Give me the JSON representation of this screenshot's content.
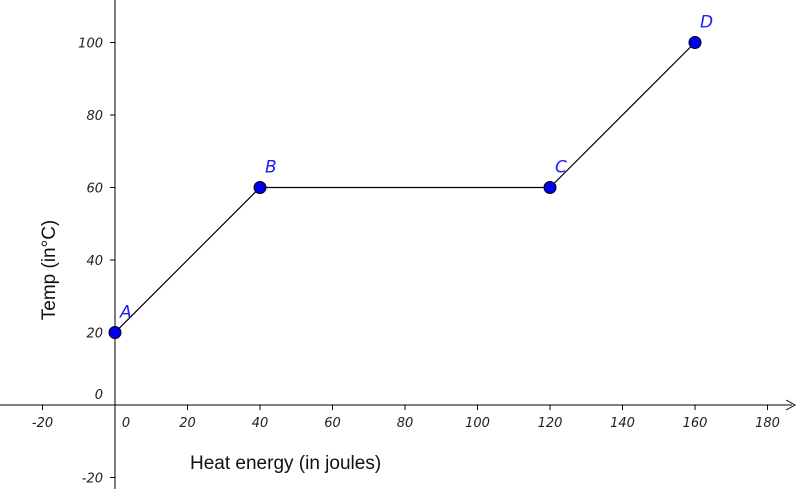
{
  "chart_data": {
    "type": "line",
    "title": "",
    "xlabel": "Heat energy (in joules)",
    "ylabel": "Temp (in°C)",
    "xlim": [
      -25,
      190
    ],
    "ylim": [
      -22,
      112
    ],
    "x_ticks": [
      -20,
      0,
      20,
      40,
      60,
      80,
      100,
      120,
      140,
      160,
      180
    ],
    "y_ticks": [
      -20,
      0,
      20,
      40,
      60,
      80,
      100
    ],
    "grid": false,
    "series": [
      {
        "points": [
          {
            "label": "A",
            "x": 0,
            "y": 20
          },
          {
            "label": "B",
            "x": 40,
            "y": 60
          },
          {
            "label": "C",
            "x": 120,
            "y": 60
          },
          {
            "label": "D",
            "x": 160,
            "y": 100
          }
        ],
        "line_color": "#000000",
        "point_color": "#0000ee"
      }
    ]
  }
}
